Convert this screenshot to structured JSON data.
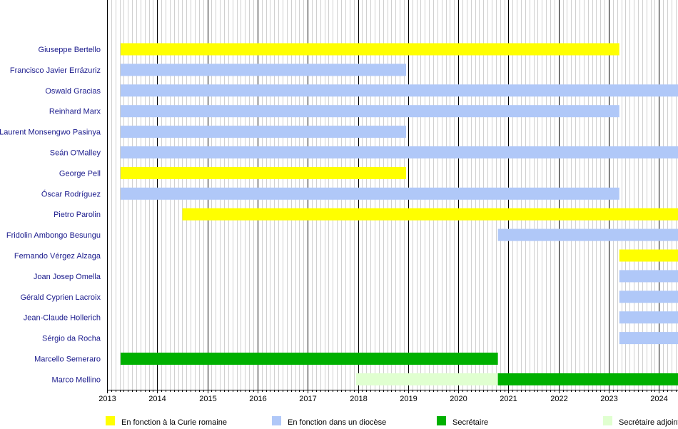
{
  "chart_data": {
    "type": "gantt",
    "x_axis": {
      "range": [
        2013.0,
        2024.4
      ],
      "ticks": [
        "2013",
        "2014",
        "2015",
        "2016",
        "2017",
        "2018",
        "2019",
        "2020",
        "2021",
        "2022",
        "2023",
        "2024"
      ],
      "major_grid": "yearly",
      "minor_grid": "monthly"
    },
    "colors": {
      "curie": "#ffff00",
      "diocese": "#b0c8f8",
      "secretaire": "#00b000",
      "secretaire_adjoint": "#e0ffd0",
      "grid_major": "#000000",
      "grid_minor": "#d0d0d0",
      "label_text": "#1a1a8c"
    },
    "legend": [
      {
        "key": "curie",
        "label": "En fonction à la Curie romaine"
      },
      {
        "key": "diocese",
        "label": "En fonction dans un diocèse"
      },
      {
        "key": "secretaire",
        "label": "Secrétaire"
      },
      {
        "key": "secretaire_adjoint",
        "label": "Secrétaire adjoint"
      }
    ],
    "rows": [
      {
        "name": "Giuseppe Bertello",
        "bars": [
          {
            "start": 2013.27,
            "end": 2023.21,
            "type": "curie"
          }
        ]
      },
      {
        "name": "Francisco Javier Errázuriz",
        "bars": [
          {
            "start": 2013.27,
            "end": 2018.96,
            "type": "diocese"
          }
        ]
      },
      {
        "name": "Oswald Gracias",
        "bars": [
          {
            "start": 2013.27,
            "end": 2024.4,
            "type": "diocese"
          }
        ]
      },
      {
        "name": "Reinhard Marx",
        "bars": [
          {
            "start": 2013.27,
            "end": 2023.21,
            "type": "diocese"
          }
        ]
      },
      {
        "name": "Laurent Monsengwo Pasinya",
        "bars": [
          {
            "start": 2013.27,
            "end": 2018.96,
            "type": "diocese"
          }
        ]
      },
      {
        "name": "Seán O'Malley",
        "bars": [
          {
            "start": 2013.27,
            "end": 2024.4,
            "type": "diocese"
          }
        ]
      },
      {
        "name": "George Pell",
        "bars": [
          {
            "start": 2013.27,
            "end": 2018.96,
            "type": "curie"
          }
        ]
      },
      {
        "name": "Óscar Rodríguez",
        "bars": [
          {
            "start": 2013.27,
            "end": 2023.21,
            "type": "diocese"
          }
        ]
      },
      {
        "name": "Pietro Parolin",
        "bars": [
          {
            "start": 2014.5,
            "end": 2024.4,
            "type": "curie"
          }
        ]
      },
      {
        "name": "Fridolin Ambongo Besungu",
        "bars": [
          {
            "start": 2020.79,
            "end": 2024.4,
            "type": "diocese"
          }
        ]
      },
      {
        "name": "Fernando Vérgez Alzaga",
        "bars": [
          {
            "start": 2023.21,
            "end": 2024.4,
            "type": "curie"
          }
        ]
      },
      {
        "name": "Joan Josep Omella",
        "bars": [
          {
            "start": 2023.21,
            "end": 2024.4,
            "type": "diocese"
          }
        ]
      },
      {
        "name": "Gérald Cyprien Lacroix",
        "bars": [
          {
            "start": 2023.21,
            "end": 2024.4,
            "type": "diocese"
          }
        ]
      },
      {
        "name": "Jean-Claude Hollerich",
        "bars": [
          {
            "start": 2023.21,
            "end": 2024.4,
            "type": "diocese"
          }
        ]
      },
      {
        "name": "Sérgio da Rocha",
        "bars": [
          {
            "start": 2023.21,
            "end": 2024.4,
            "type": "diocese"
          }
        ]
      },
      {
        "name": "Marcello Semeraro",
        "bars": [
          {
            "start": 2013.27,
            "end": 2020.79,
            "type": "secretaire"
          }
        ]
      },
      {
        "name": "Marco Mellino",
        "bars": [
          {
            "start": 2017.96,
            "end": 2020.79,
            "type": "secretaire_adjoint"
          },
          {
            "start": 2020.79,
            "end": 2024.4,
            "type": "secretaire"
          }
        ]
      }
    ]
  }
}
